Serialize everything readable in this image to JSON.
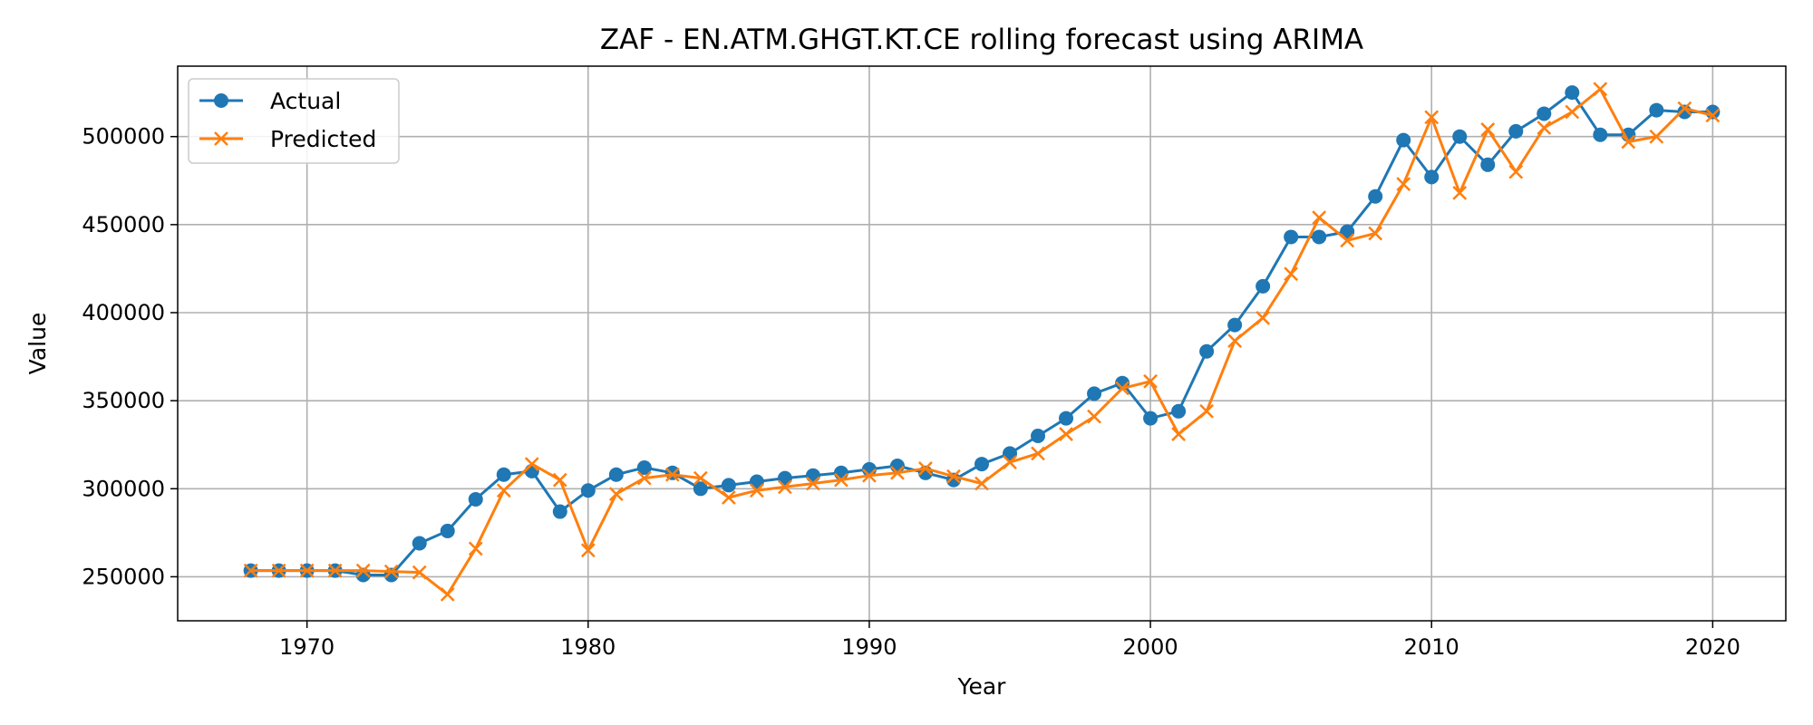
{
  "chart_data": {
    "type": "line",
    "title": "ZAF - EN.ATM.GHGT.KT.CE rolling forecast using ARIMA",
    "xlabel": "Year",
    "ylabel": "Value",
    "xlim": [
      1965.4,
      2022.6
    ],
    "ylim": [
      225000,
      540000
    ],
    "xticks": [
      1970,
      1980,
      1990,
      2000,
      2010,
      2020
    ],
    "yticks": [
      250000,
      300000,
      350000,
      400000,
      450000,
      500000
    ],
    "grid": true,
    "legend_position": "top-left",
    "x": [
      1968,
      1969,
      1970,
      1971,
      1972,
      1973,
      1974,
      1975,
      1976,
      1977,
      1978,
      1979,
      1980,
      1981,
      1982,
      1983,
      1984,
      1985,
      1986,
      1987,
      1988,
      1989,
      1990,
      1991,
      1992,
      1993,
      1994,
      1995,
      1996,
      1997,
      1998,
      1999,
      2000,
      2001,
      2002,
      2003,
      2004,
      2005,
      2006,
      2007,
      2008,
      2009,
      2010,
      2011,
      2012,
      2013,
      2014,
      2015,
      2016,
      2017,
      2018,
      2019,
      2020
    ],
    "series": [
      {
        "name": "Actual",
        "color": "#1f77b4",
        "marker": "circle",
        "values": [
          253500,
          253500,
          253500,
          253500,
          251000,
          251000,
          269000,
          276000,
          294000,
          308000,
          310000,
          287000,
          299000,
          308000,
          312000,
          309000,
          300000,
          302000,
          304000,
          306000,
          307500,
          309000,
          311000,
          313000,
          309000,
          305000,
          314000,
          320000,
          330000,
          340000,
          354000,
          360000,
          340000,
          344000,
          378000,
          393000,
          415000,
          443000,
          443000,
          446000,
          466000,
          498000,
          477000,
          500000,
          484000,
          503000,
          513000,
          525000,
          501000,
          501000,
          515000,
          514000,
          514000
        ]
      },
      {
        "name": "Predicted",
        "color": "#ff7f0e",
        "marker": "x",
        "values": [
          253500,
          253500,
          253500,
          253500,
          253500,
          253000,
          252500,
          240000,
          266000,
          299000,
          314000,
          305000,
          265000,
          297000,
          306000,
          308000,
          306000,
          295000,
          299000,
          301000,
          303000,
          305000,
          307500,
          309000,
          311500,
          307000,
          303000,
          315000,
          320000,
          331000,
          341000,
          357000,
          361000,
          331000,
          344000,
          384000,
          397000,
          422000,
          454000,
          441000,
          445000,
          473000,
          511000,
          468000,
          504000,
          480000,
          505000,
          514000,
          527000,
          497000,
          500000,
          516000,
          512000
        ]
      }
    ]
  }
}
